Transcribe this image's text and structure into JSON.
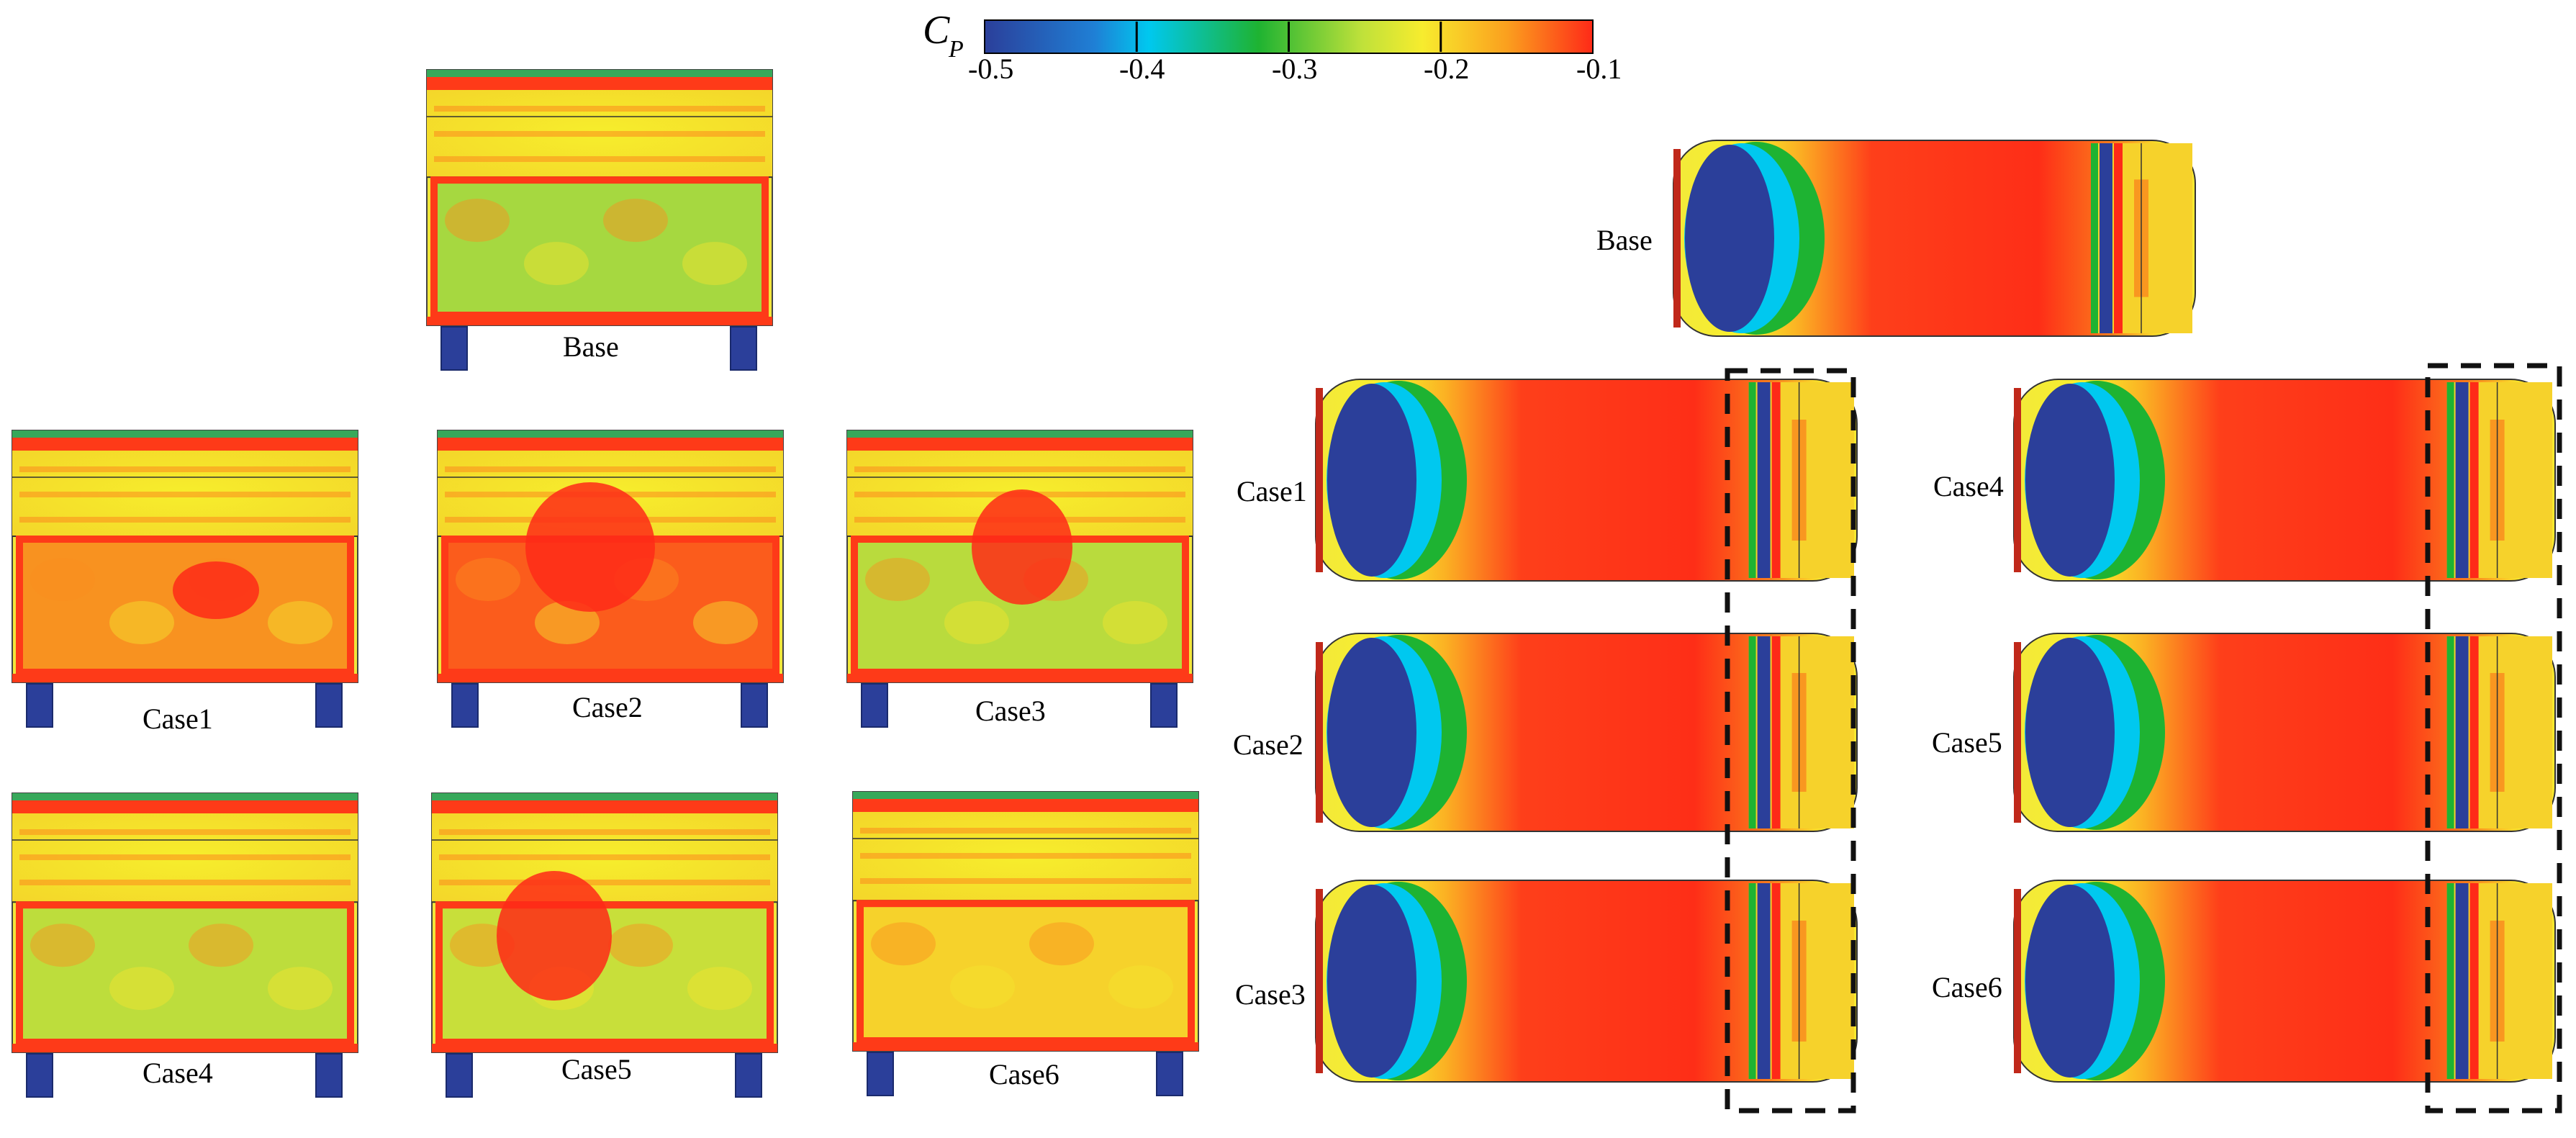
{
  "colorbar": {
    "symbol": "C",
    "subscript": "P",
    "ticks": [
      "-0.5",
      "-0.4",
      "-0.3",
      "-0.2",
      "-0.1"
    ],
    "range": [
      -0.5,
      -0.1
    ],
    "colors": [
      "#2b3f9a",
      "#00c8ef",
      "#1eb332",
      "#f7ec2e",
      "#fe2a18"
    ]
  },
  "rear_views": [
    {
      "label": "Base"
    },
    {
      "label": "Case1"
    },
    {
      "label": "Case2"
    },
    {
      "label": "Case3"
    },
    {
      "label": "Case4"
    },
    {
      "label": "Case5"
    },
    {
      "label": "Case6"
    }
  ],
  "side_views": [
    {
      "label": "Base"
    },
    {
      "label": "Case1"
    },
    {
      "label": "Case2"
    },
    {
      "label": "Case3"
    },
    {
      "label": "Case4"
    },
    {
      "label": "Case5"
    },
    {
      "label": "Case6"
    }
  ],
  "highlight_boxes": 2
}
